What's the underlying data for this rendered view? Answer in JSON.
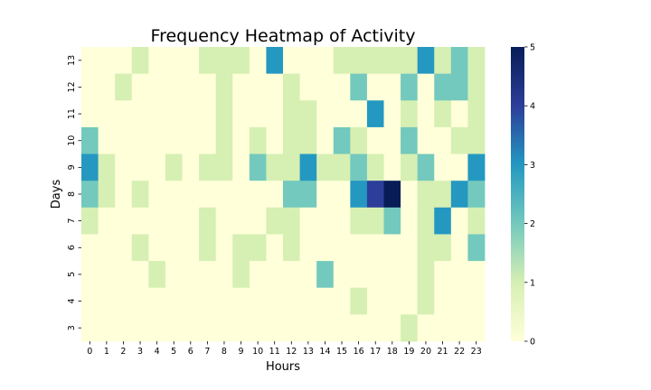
{
  "chart_data": {
    "type": "heatmap",
    "title": "Frequency Heatmap of Activity",
    "xlabel": "Hours",
    "ylabel": "Days",
    "x": [
      0,
      1,
      2,
      3,
      4,
      5,
      6,
      7,
      8,
      9,
      10,
      11,
      12,
      13,
      14,
      15,
      16,
      17,
      18,
      19,
      20,
      21,
      22,
      23
    ],
    "y": [
      13,
      12,
      11,
      10,
      9,
      8,
      7,
      6,
      5,
      4,
      3
    ],
    "values": [
      [
        0,
        0,
        0,
        1,
        0,
        0,
        0,
        1,
        1,
        1,
        0,
        3,
        0,
        0,
        0,
        1,
        1,
        1,
        1,
        1,
        3,
        1,
        2,
        1
      ],
      [
        0,
        0,
        1,
        0,
        0,
        0,
        0,
        0,
        1,
        0,
        0,
        0,
        1,
        0,
        0,
        0,
        2,
        0,
        0,
        2,
        0,
        2,
        2,
        1
      ],
      [
        0,
        0,
        0,
        0,
        0,
        0,
        0,
        0,
        1,
        0,
        0,
        0,
        1,
        1,
        0,
        0,
        0,
        3,
        0,
        1,
        0,
        1,
        0,
        1
      ],
      [
        2,
        0,
        0,
        0,
        0,
        0,
        0,
        0,
        1,
        0,
        1,
        0,
        1,
        1,
        0,
        2,
        1,
        0,
        0,
        2,
        0,
        0,
        1,
        1
      ],
      [
        3,
        1,
        0,
        0,
        0,
        1,
        0,
        1,
        1,
        0,
        2,
        1,
        1,
        3,
        1,
        1,
        2,
        1,
        0,
        1,
        2,
        0,
        0,
        3
      ],
      [
        2,
        1,
        0,
        1,
        0,
        0,
        0,
        0,
        0,
        0,
        0,
        0,
        2,
        2,
        0,
        0,
        3,
        4,
        5,
        0,
        1,
        1,
        3,
        2
      ],
      [
        1,
        0,
        0,
        0,
        0,
        0,
        0,
        1,
        0,
        0,
        0,
        1,
        1,
        0,
        0,
        0,
        1,
        1,
        2,
        0,
        1,
        3,
        0,
        1
      ],
      [
        0,
        0,
        0,
        1,
        0,
        0,
        0,
        1,
        0,
        1,
        1,
        0,
        1,
        0,
        0,
        0,
        0,
        0,
        0,
        0,
        1,
        1,
        0,
        2
      ],
      [
        0,
        0,
        0,
        0,
        1,
        0,
        0,
        0,
        0,
        1,
        0,
        0,
        0,
        0,
        2,
        0,
        0,
        0,
        0,
        0,
        1,
        0,
        0,
        0
      ],
      [
        0,
        0,
        0,
        0,
        0,
        0,
        0,
        0,
        0,
        0,
        0,
        0,
        0,
        0,
        0,
        0,
        1,
        0,
        0,
        0,
        1,
        0,
        0,
        0
      ],
      [
        0,
        0,
        0,
        0,
        0,
        0,
        0,
        0,
        0,
        0,
        0,
        0,
        0,
        0,
        0,
        0,
        0,
        0,
        0,
        1,
        0,
        0,
        0,
        0
      ]
    ],
    "colorbar": {
      "min": 0,
      "max": 5,
      "ticks": [
        0,
        1,
        2,
        3,
        4,
        5
      ]
    },
    "colormap": [
      "#ffffd9",
      "#d6efb3",
      "#73c9bd",
      "#2498c1",
      "#2c3e99",
      "#081d58"
    ]
  }
}
